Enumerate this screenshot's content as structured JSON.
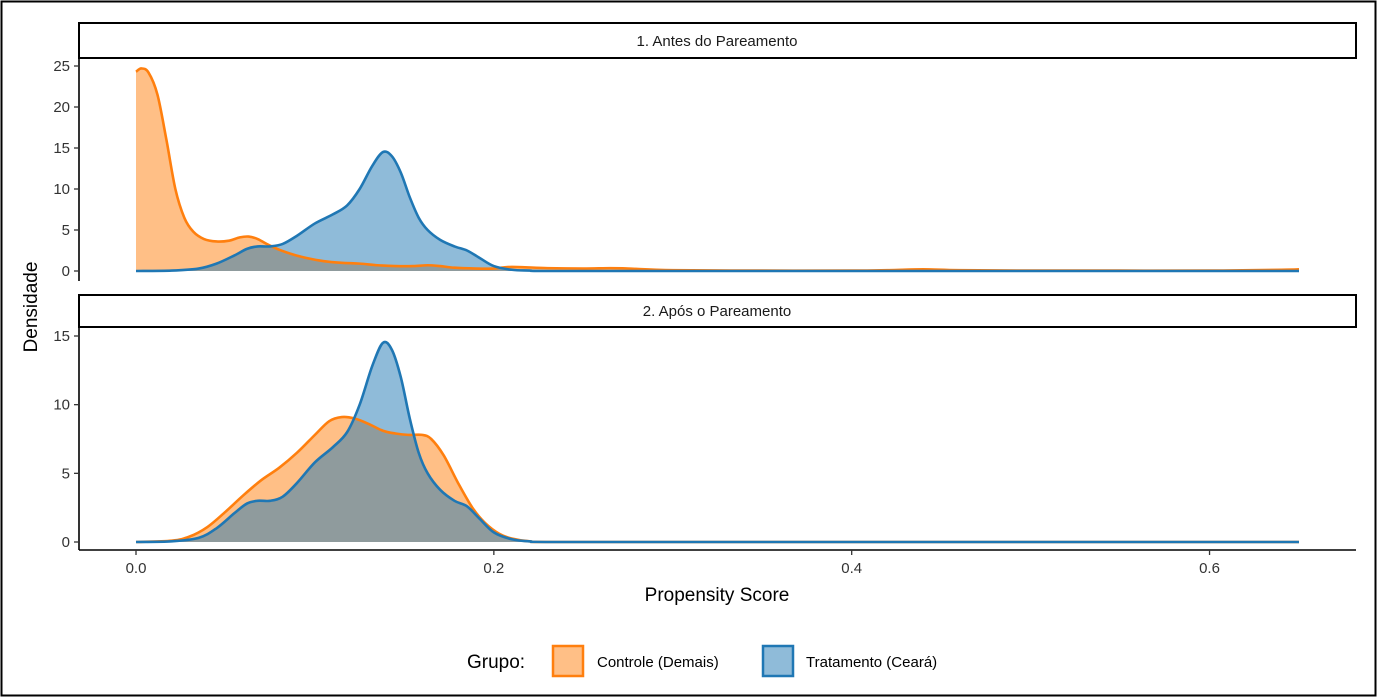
{
  "chart_data": {
    "type": "area",
    "xlabel": "Propensity Score",
    "ylabel": "Densidade",
    "x_ticks": [
      0.0,
      0.2,
      0.4,
      0.6
    ],
    "x_tick_labels": [
      "0.0",
      "0.2",
      "0.4",
      "0.6"
    ],
    "xlim": [
      0.0,
      0.65
    ],
    "legend": {
      "title": "Grupo:",
      "position": "bottom",
      "entries": [
        {
          "label": "Controle (Demais)",
          "color": "#ff7f0e",
          "fill": "#ffbf86"
        },
        {
          "label": "Tratamento (Ceará)",
          "color": "#1f77b4",
          "fill": "#8fbbd9"
        }
      ]
    },
    "panels": [
      {
        "title": "1. Antes do Pareamento",
        "ylim": [
          0,
          25
        ],
        "y_ticks": [
          0,
          5,
          10,
          15,
          20,
          25
        ],
        "series": [
          {
            "name": "Controle (Demais)",
            "color": "#ff7f0e",
            "points": [
              [
                0.0,
                24.3
              ],
              [
                0.003,
                24.7
              ],
              [
                0.007,
                24.2
              ],
              [
                0.012,
                21.5
              ],
              [
                0.017,
                16.0
              ],
              [
                0.022,
                10.0
              ],
              [
                0.027,
                6.5
              ],
              [
                0.032,
                4.8
              ],
              [
                0.038,
                3.9
              ],
              [
                0.045,
                3.6
              ],
              [
                0.052,
                3.7
              ],
              [
                0.058,
                4.1
              ],
              [
                0.063,
                4.2
              ],
              [
                0.068,
                3.9
              ],
              [
                0.073,
                3.3
              ],
              [
                0.08,
                2.6
              ],
              [
                0.088,
                2.0
              ],
              [
                0.095,
                1.6
              ],
              [
                0.105,
                1.2
              ],
              [
                0.115,
                1.0
              ],
              [
                0.125,
                0.9
              ],
              [
                0.135,
                0.7
              ],
              [
                0.145,
                0.6
              ],
              [
                0.155,
                0.6
              ],
              [
                0.163,
                0.7
              ],
              [
                0.17,
                0.6
              ],
              [
                0.178,
                0.4
              ],
              [
                0.19,
                0.3
              ],
              [
                0.2,
                0.3
              ],
              [
                0.21,
                0.5
              ],
              [
                0.23,
                0.35
              ],
              [
                0.25,
                0.3
              ],
              [
                0.265,
                0.35
              ],
              [
                0.275,
                0.3
              ],
              [
                0.3,
                0.1
              ],
              [
                0.35,
                0.05
              ],
              [
                0.4,
                0.05
              ],
              [
                0.42,
                0.1
              ],
              [
                0.44,
                0.2
              ],
              [
                0.46,
                0.1
              ],
              [
                0.5,
                0.05
              ],
              [
                0.55,
                0.05
              ],
              [
                0.6,
                0.05
              ],
              [
                0.64,
                0.15
              ],
              [
                0.65,
                0.2
              ]
            ]
          },
          {
            "name": "Tratamento (Ceará)",
            "color": "#1f77b4",
            "points": [
              [
                0.0,
                0.0
              ],
              [
                0.02,
                0.05
              ],
              [
                0.035,
                0.3
              ],
              [
                0.045,
                0.9
              ],
              [
                0.055,
                1.9
              ],
              [
                0.062,
                2.7
              ],
              [
                0.068,
                3.0
              ],
              [
                0.075,
                3.0
              ],
              [
                0.082,
                3.3
              ],
              [
                0.09,
                4.3
              ],
              [
                0.1,
                5.8
              ],
              [
                0.11,
                6.9
              ],
              [
                0.118,
                8.0
              ],
              [
                0.125,
                10.0
              ],
              [
                0.132,
                12.8
              ],
              [
                0.138,
                14.5
              ],
              [
                0.143,
                14.0
              ],
              [
                0.148,
                12.0
              ],
              [
                0.153,
                9.0
              ],
              [
                0.158,
                6.5
              ],
              [
                0.163,
                5.0
              ],
              [
                0.17,
                3.8
              ],
              [
                0.178,
                3.0
              ],
              [
                0.185,
                2.5
              ],
              [
                0.192,
                1.6
              ],
              [
                0.2,
                0.6
              ],
              [
                0.21,
                0.15
              ],
              [
                0.22,
                0.05
              ],
              [
                0.24,
                0.0
              ],
              [
                0.4,
                0.0
              ],
              [
                0.65,
                0.0
              ]
            ]
          }
        ]
      },
      {
        "title": "2. Após o Pareamento",
        "ylim": [
          0,
          15
        ],
        "y_ticks": [
          0,
          5,
          10,
          15
        ],
        "series": [
          {
            "name": "Controle (Demais)",
            "color": "#ff7f0e",
            "points": [
              [
                0.0,
                0.0
              ],
              [
                0.02,
                0.1
              ],
              [
                0.03,
                0.4
              ],
              [
                0.04,
                1.1
              ],
              [
                0.05,
                2.2
              ],
              [
                0.06,
                3.4
              ],
              [
                0.07,
                4.5
              ],
              [
                0.08,
                5.4
              ],
              [
                0.09,
                6.5
              ],
              [
                0.1,
                7.8
              ],
              [
                0.108,
                8.8
              ],
              [
                0.115,
                9.1
              ],
              [
                0.122,
                9.0
              ],
              [
                0.13,
                8.6
              ],
              [
                0.138,
                8.1
              ],
              [
                0.145,
                7.9
              ],
              [
                0.152,
                7.8
              ],
              [
                0.16,
                7.8
              ],
              [
                0.165,
                7.5
              ],
              [
                0.172,
                6.3
              ],
              [
                0.18,
                4.3
              ],
              [
                0.188,
                2.5
              ],
              [
                0.195,
                1.4
              ],
              [
                0.203,
                0.6
              ],
              [
                0.21,
                0.25
              ],
              [
                0.22,
                0.05
              ],
              [
                0.24,
                0.0
              ],
              [
                0.4,
                0.0
              ],
              [
                0.65,
                0.0
              ]
            ]
          },
          {
            "name": "Tratamento (Ceará)",
            "color": "#1f77b4",
            "points": [
              [
                0.0,
                0.0
              ],
              [
                0.02,
                0.05
              ],
              [
                0.035,
                0.3
              ],
              [
                0.045,
                1.0
              ],
              [
                0.055,
                2.1
              ],
              [
                0.062,
                2.8
              ],
              [
                0.068,
                3.0
              ],
              [
                0.075,
                3.0
              ],
              [
                0.082,
                3.3
              ],
              [
                0.09,
                4.3
              ],
              [
                0.1,
                5.8
              ],
              [
                0.11,
                6.9
              ],
              [
                0.118,
                8.0
              ],
              [
                0.125,
                10.0
              ],
              [
                0.132,
                12.8
              ],
              [
                0.138,
                14.5
              ],
              [
                0.143,
                14.0
              ],
              [
                0.148,
                12.0
              ],
              [
                0.153,
                9.0
              ],
              [
                0.158,
                6.5
              ],
              [
                0.163,
                5.0
              ],
              [
                0.17,
                3.8
              ],
              [
                0.178,
                3.0
              ],
              [
                0.185,
                2.6
              ],
              [
                0.192,
                1.7
              ],
              [
                0.2,
                0.7
              ],
              [
                0.21,
                0.2
              ],
              [
                0.22,
                0.05
              ],
              [
                0.24,
                0.0
              ],
              [
                0.4,
                0.0
              ],
              [
                0.65,
                0.0
              ]
            ]
          }
        ]
      }
    ]
  }
}
